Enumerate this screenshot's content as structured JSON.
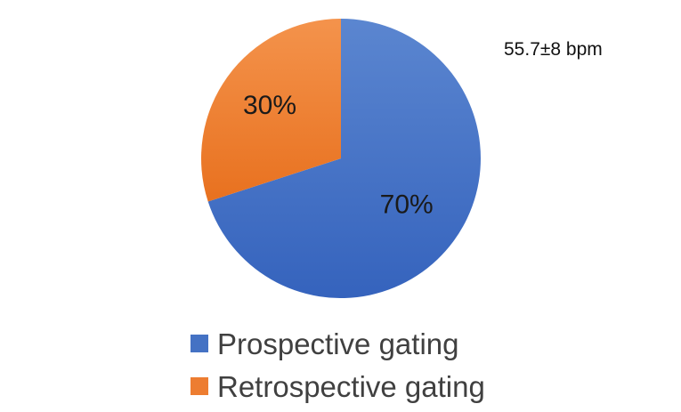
{
  "chart_data": {
    "type": "pie",
    "categories": [
      "Prospective gating",
      "Retrospective gating"
    ],
    "values": [
      70,
      30
    ],
    "data_labels": [
      "70%",
      "30%"
    ],
    "colors": [
      "#4472c4",
      "#ed7d31"
    ],
    "legend_position": "bottom",
    "start_angle_deg": 0,
    "direction": "clockwise"
  },
  "annotation": "55.7±8 bpm",
  "legend": {
    "items": [
      {
        "label": "Prospective gating",
        "color": "#4472c4"
      },
      {
        "label": "Retrospective gating",
        "color": "#ed7d31"
      }
    ]
  }
}
